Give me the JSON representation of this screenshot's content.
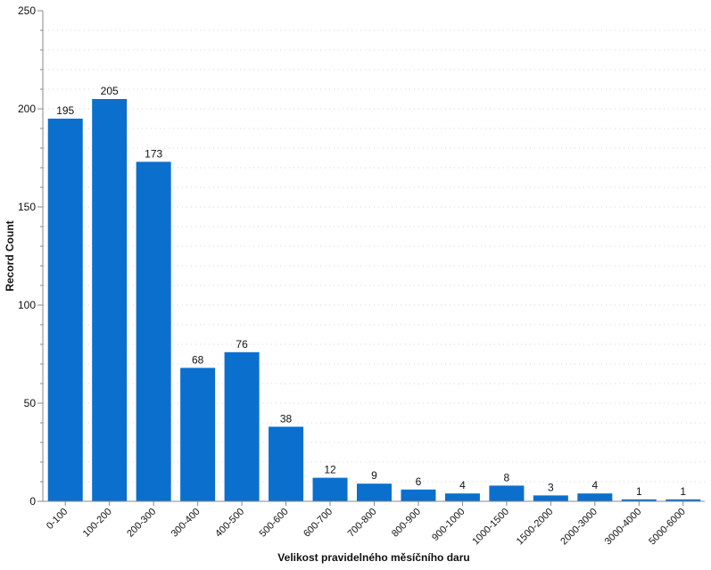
{
  "chart_data": {
    "type": "bar",
    "title": "",
    "xlabel": "Velikost pravidelného měsíčního daru",
    "ylabel": "Record Count",
    "ylim": [
      0,
      250
    ],
    "yticks": [
      0,
      50,
      100,
      150,
      200,
      250
    ],
    "minor_tick_step": 10,
    "grid": true,
    "bar_color": "#0b6fce",
    "categories": [
      "0-100",
      "100-200",
      "200-300",
      "300-400",
      "400-500",
      "500-600",
      "600-700",
      "700-800",
      "800-900",
      "900-1000",
      "1000-1500",
      "1500-2000",
      "2000-3000",
      "3000-4000",
      "5000-6000"
    ],
    "values": [
      195,
      205,
      173,
      68,
      76,
      38,
      12,
      9,
      6,
      4,
      8,
      3,
      4,
      1,
      1
    ]
  }
}
